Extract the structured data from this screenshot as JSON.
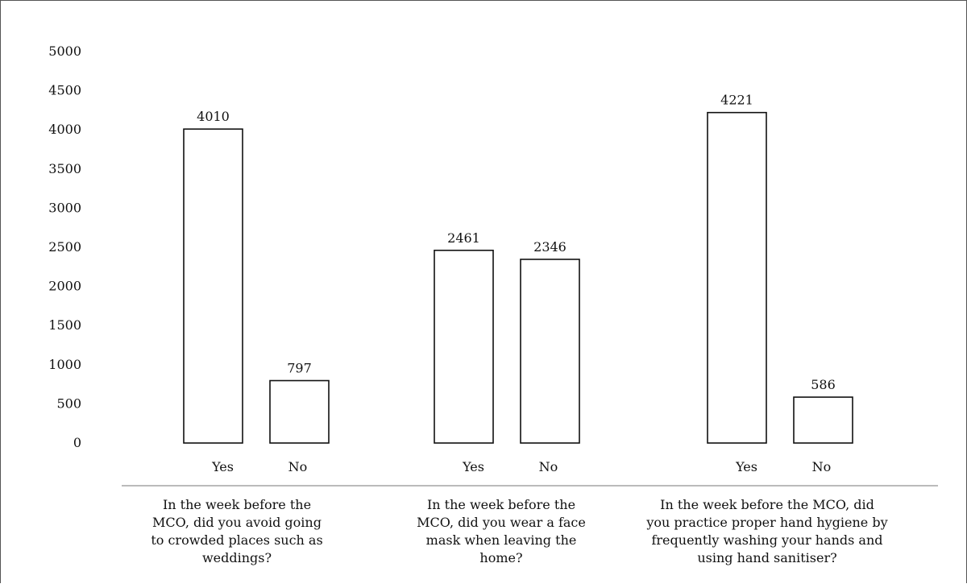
{
  "chart_data": {
    "type": "bar",
    "title": "",
    "xlabel": "",
    "ylabel": "",
    "ylim": [
      0,
      5000
    ],
    "yticks": [
      0,
      500,
      1000,
      1500,
      2000,
      2500,
      3000,
      3500,
      4000,
      4500,
      5000
    ],
    "grid": false,
    "legend": "none",
    "groups": [
      {
        "question": "In the week before the MCO, did you avoid going to crowded places such as weddings?",
        "question_lines": [
          "In the week before the",
          "MCO, did you avoid going",
          "to crowded places such as",
          "weddings?"
        ],
        "bars": [
          {
            "category": "Yes",
            "value": 4010
          },
          {
            "category": "No",
            "value": 797
          }
        ]
      },
      {
        "question": "In the week before the MCO, did you wear a face mask when leaving the home?",
        "question_lines": [
          "In the week before the",
          "MCO, did you wear a face",
          "mask when leaving the",
          "home?"
        ],
        "bars": [
          {
            "category": "Yes",
            "value": 2461
          },
          {
            "category": "No",
            "value": 2346
          }
        ]
      },
      {
        "question": "In the week before the MCO, did you practice proper hand hygiene by frequently washing your hands and using hand sanitiser?",
        "question_lines": [
          "In the week before the MCO, did",
          "you practice proper hand hygiene by",
          "frequently washing your hands and",
          "using hand sanitiser?"
        ],
        "bars": [
          {
            "category": "Yes",
            "value": 4221
          },
          {
            "category": "No",
            "value": 586
          }
        ]
      }
    ]
  }
}
